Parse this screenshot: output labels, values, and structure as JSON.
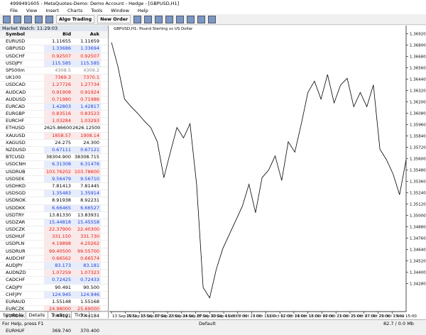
{
  "window": {
    "title": "4999491605 - MetaQuotes-Demo: Demo Account - Hedge - [GBPUSD,H1]"
  },
  "menu": [
    "File",
    "View",
    "Insert",
    "Charts",
    "Tools",
    "Window",
    "Help"
  ],
  "toolbar": {
    "algo_trading": "Algo Trading",
    "new_order": "New Order"
  },
  "market_watch": {
    "title": "Market Watch: 11:29:03",
    "columns": [
      "Symbol",
      "Bid",
      "Ask"
    ],
    "rows": [
      {
        "symbol": "EURUSD",
        "bid": "1.11655",
        "ask": "1.11659",
        "color": "black"
      },
      {
        "symbol": "GBPUSD",
        "bid": "1.33686",
        "ask": "1.33694",
        "color": "blue"
      },
      {
        "symbol": "USDCHF",
        "bid": "0.92507",
        "ask": "0.92507",
        "color": "red"
      },
      {
        "symbol": "USDJPY",
        "bid": "115.585",
        "ask": "115.585",
        "color": "blue"
      },
      {
        "symbol": "SP500m",
        "bid": "4308.5",
        "ask": "4309.2",
        "color": "gray"
      },
      {
        "symbol": "UK100",
        "bid": "7369.3",
        "ask": "7370.1",
        "color": "red"
      },
      {
        "symbol": "USDCAD",
        "bid": "1.27726",
        "ask": "1.27734",
        "color": "red"
      },
      {
        "symbol": "AUDCAD",
        "bid": "0.91908",
        "ask": "0.91924",
        "color": "red"
      },
      {
        "symbol": "AUDUSD",
        "bid": "0.71980",
        "ask": "0.71986",
        "color": "red"
      },
      {
        "symbol": "EURCAD",
        "bid": "1.42803",
        "ask": "1.42817",
        "color": "blue"
      },
      {
        "symbol": "EURGBP",
        "bid": "0.83516",
        "ask": "0.83523",
        "color": "red"
      },
      {
        "symbol": "EURCHF",
        "bid": "1.03284",
        "ask": "1.03293",
        "color": "red"
      },
      {
        "symbol": "ETHUSD",
        "bid": "2625.86600",
        "ask": "2626.12500",
        "color": "black"
      },
      {
        "symbol": "XAUUSD",
        "bid": "1858.57",
        "ask": "1908.14",
        "color": "red"
      },
      {
        "symbol": "XAGUSD",
        "bid": "24.275",
        "ask": "24.300",
        "color": "black"
      },
      {
        "symbol": "NZDUSD",
        "bid": "0.67111",
        "ask": "0.67121",
        "color": "blue"
      },
      {
        "symbol": "BTCUSD",
        "bid": "38304.900",
        "ask": "38308.715",
        "color": "black"
      },
      {
        "symbol": "USDCNH",
        "bid": "6.31308",
        "ask": "6.31476",
        "color": "blue"
      },
      {
        "symbol": "USDRUB",
        "bid": "103.76202",
        "ask": "103.78600",
        "color": "red"
      },
      {
        "symbol": "USDSEK",
        "bid": "9.56479",
        "ask": "9.56710",
        "color": "blue"
      },
      {
        "symbol": "USDHKD",
        "bid": "7.81413",
        "ask": "7.81445",
        "color": "black"
      },
      {
        "symbol": "USDSGD",
        "bid": "1.35483",
        "ask": "1.35914",
        "color": "blue"
      },
      {
        "symbol": "USDNOK",
        "bid": "8.91938",
        "ask": "8.92231",
        "color": "black"
      },
      {
        "symbol": "USDDKK",
        "bid": "6.66465",
        "ask": "6.66527",
        "color": "blue"
      },
      {
        "symbol": "USDTRY",
        "bid": "13.81330",
        "ask": "13.83931",
        "color": "black"
      },
      {
        "symbol": "USDZAR",
        "bid": "15.44818",
        "ask": "15.45558",
        "color": "blue"
      },
      {
        "symbol": "USDCZK",
        "bid": "22.37900",
        "ask": "22.40300",
        "color": "red"
      },
      {
        "symbol": "USDHUF",
        "bid": "331.150",
        "ask": "331.730",
        "color": "red"
      },
      {
        "symbol": "USDPLN",
        "bid": "4.19898",
        "ask": "4.20262",
        "color": "red"
      },
      {
        "symbol": "USDRUR",
        "bid": "99.40500",
        "ask": "99.55700",
        "color": "red"
      },
      {
        "symbol": "AUDCHF",
        "bid": "0.66562",
        "ask": "0.66574",
        "color": "red"
      },
      {
        "symbol": "AUDJPY",
        "bid": "83.173",
        "ask": "83.181",
        "color": "blue"
      },
      {
        "symbol": "AUDNZD",
        "bid": "1.07259",
        "ask": "1.07323",
        "color": "red"
      },
      {
        "symbol": "CADCHF",
        "bid": "0.72425",
        "ask": "0.72433",
        "color": "blue"
      },
      {
        "symbol": "CADJPY",
        "bid": "90.491",
        "ask": "90.500",
        "color": "black"
      },
      {
        "symbol": "CHFJPY",
        "bid": "124.945",
        "ask": "124.946",
        "color": "blue"
      },
      {
        "symbol": "EURAUD",
        "bid": "1.55148",
        "ask": "1.55168",
        "color": "black"
      },
      {
        "symbol": "EURCZK",
        "bid": "24.98000",
        "ask": "25.69000",
        "color": "red"
      },
      {
        "symbol": "EURDKK",
        "bid": "7.44121",
        "ask": "7.44184",
        "color": "black"
      },
      {
        "symbol": "EURHKD",
        "bid": "8.72406",
        "ask": "8.72581",
        "color": "blue"
      },
      {
        "symbol": "EURHUF",
        "bid": "369.740",
        "ask": "370.400",
        "color": "black"
      }
    ],
    "tabs": [
      "Symbols",
      "Details",
      "Trading",
      "Ticks"
    ]
  },
  "chart": {
    "type": "line",
    "title": "GBPUSD,H1: Pound Sterling vs US Dollar",
    "color": "#000000",
    "values": [
      1.3683,
      1.3657,
      1.3623,
      1.3615,
      1.3608,
      1.36,
      1.3593,
      1.3578,
      1.354,
      1.3567,
      1.3593,
      1.3582,
      1.3597,
      1.3533,
      1.3424,
      1.3413,
      1.3443,
      1.3465,
      1.348,
      1.3495,
      1.351,
      1.3533,
      1.3503,
      1.354,
      1.3548,
      1.3563,
      1.3537,
      1.3578,
      1.3567,
      1.3597,
      1.363,
      1.3642,
      1.3623,
      1.3649,
      1.3619,
      1.3638,
      1.3645,
      1.3615,
      1.363,
      1.3615,
      1.3638,
      1.357,
      1.3559,
      1.3544,
      1.3522,
      1.3559
    ],
    "ylim": [
      1.34,
      1.37
    ],
    "yticks": [
      {
        "value": 1.3692,
        "label": "1.36920"
      },
      {
        "value": 1.368,
        "label": "1.36800"
      },
      {
        "value": 1.3668,
        "label": "1.36680"
      },
      {
        "value": 1.3656,
        "label": "1.36560"
      },
      {
        "value": 1.3644,
        "label": "1.36440"
      },
      {
        "value": 1.3632,
        "label": "1.36320"
      },
      {
        "value": 1.362,
        "label": "1.36200"
      },
      {
        "value": 1.3608,
        "label": "1.36080"
      },
      {
        "value": 1.3596,
        "label": "1.35960"
      },
      {
        "value": 1.3584,
        "label": "1.35840"
      },
      {
        "value": 1.3572,
        "label": "1.35720"
      },
      {
        "value": 1.356,
        "label": "1.35600"
      },
      {
        "value": 1.3548,
        "label": "1.35480"
      },
      {
        "value": 1.3536,
        "label": "1.35360"
      },
      {
        "value": 1.3524,
        "label": "1.35240"
      },
      {
        "value": 1.3512,
        "label": "1.35120"
      },
      {
        "value": 1.35,
        "label": "1.35000"
      },
      {
        "value": 1.3488,
        "label": "1.34880"
      },
      {
        "value": 1.3476,
        "label": "1.34760"
      },
      {
        "value": 1.3464,
        "label": "1.34640"
      },
      {
        "value": 1.3452,
        "label": "1.34520"
      },
      {
        "value": 1.344,
        "label": "1.34400"
      },
      {
        "value": 1.3428,
        "label": "1.34280"
      }
    ],
    "x_labels": [
      "13 Sep 2021",
      "15 Sep 15:00",
      "17 Sep 07:00",
      "20 Sep 23:00",
      "22 Sep 15:00",
      "24 Sep 07:00",
      "28 Sep 23:00",
      "30 Sep 15:00",
      "4 Oct 07:00",
      "5 Oct 23:00",
      "7 Oct 15:00",
      "11 Oct 07:00",
      "12 Oct 23:00",
      "14 Oct 15:00",
      "18 Oct 07:00",
      "19 Oct 23:00",
      "21 Oct 15:00",
      "25 Oct 07:00",
      "27 Oct 23:00",
      "29 Oct 15:00",
      "1 Nov 15:00"
    ]
  },
  "status": {
    "help": "For Help, press F1",
    "profile": "Default",
    "memory": "82.7 / 0.0 Mb"
  }
}
